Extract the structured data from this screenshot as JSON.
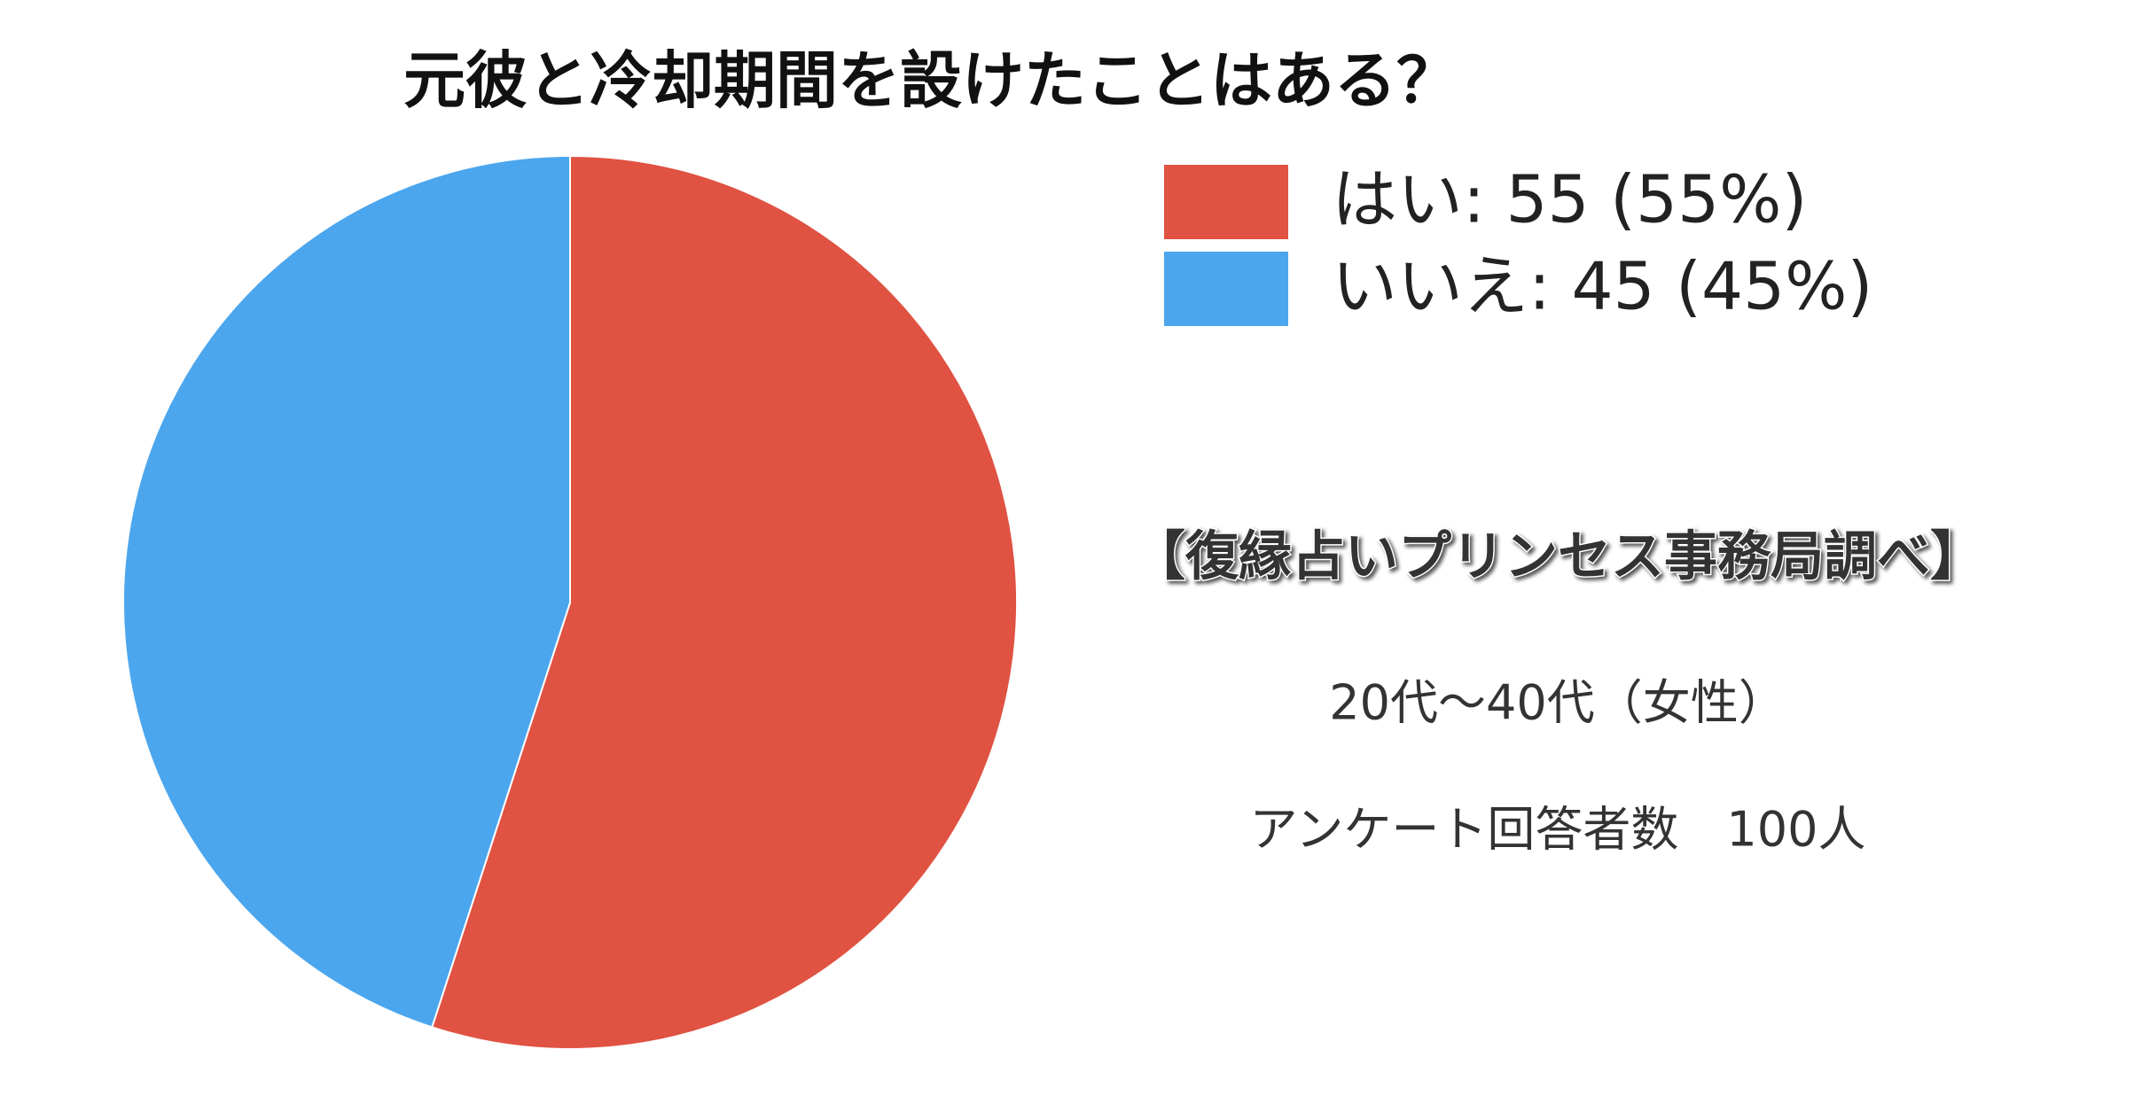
{
  "chart_data": {
    "type": "pie",
    "title": "元彼と冷却期間を設けたことはある？",
    "categories": [
      "はい",
      "いいえ"
    ],
    "values": [
      55,
      45
    ],
    "colors": [
      "#e05242",
      "#4ba6ee"
    ],
    "legend": [
      "はい: 55 (55%)",
      "いいえ: 45 (45%)"
    ],
    "notes": [
      "【復縁占いプリンセス事務局調べ】",
      "20代〜40代（女性）",
      "アンケート回答者数　100人"
    ]
  }
}
